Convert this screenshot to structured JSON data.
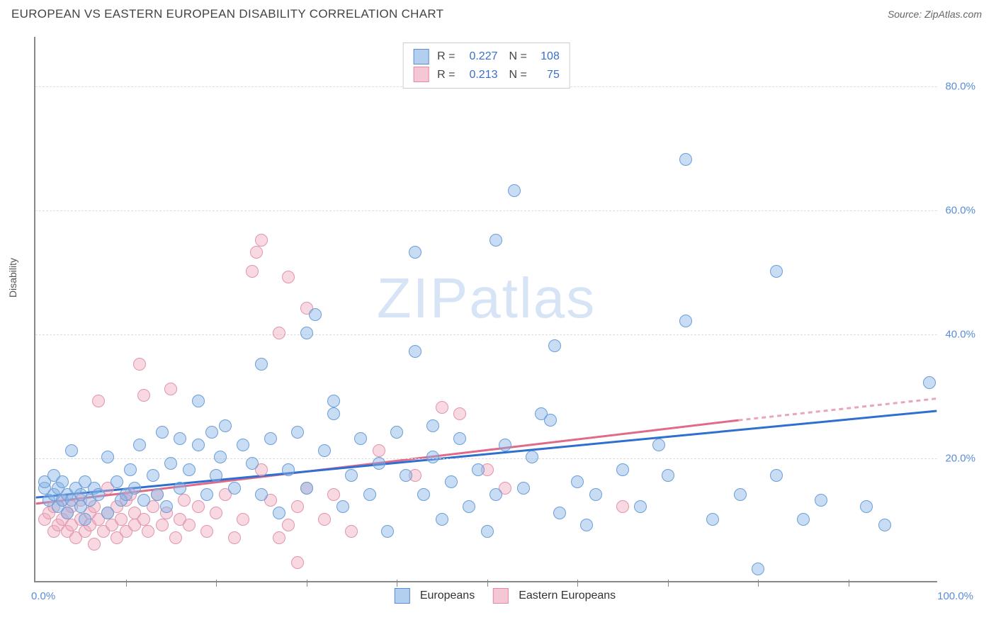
{
  "title": "EUROPEAN VS EASTERN EUROPEAN DISABILITY CORRELATION CHART",
  "source_label": "Source:",
  "source_value": "ZipAtlas.com",
  "chart": {
    "type": "scatter",
    "ylabel": "Disability",
    "xlim": [
      0,
      100
    ],
    "ylim": [
      0,
      88
    ],
    "x_min_label": "0.0%",
    "x_max_label": "100.0%",
    "x_ticks": [
      10,
      20,
      30,
      40,
      50,
      60,
      70,
      80,
      90
    ],
    "y_ticks": [
      {
        "v": 20,
        "label": "20.0%"
      },
      {
        "v": 40,
        "label": "40.0%"
      },
      {
        "v": 60,
        "label": "60.0%"
      },
      {
        "v": 80,
        "label": "80.0%"
      }
    ],
    "grid_color": "#dddddd",
    "axis_color": "#888888",
    "background_color": "#ffffff",
    "watermark": "ZIPatlas",
    "marker_radius": 9,
    "trend_line_width": 3,
    "series": {
      "europeans": {
        "label": "Europeans",
        "color_fill": "#b3cff0",
        "color_stroke": "#5b8dd6",
        "R": "0.227",
        "N": "108",
        "trend": {
          "x1": 0,
          "y1": 13.5,
          "x2": 100,
          "y2": 27.5,
          "color": "#2e6fd0"
        },
        "points": [
          [
            1,
            15
          ],
          [
            1,
            16
          ],
          [
            1.5,
            13
          ],
          [
            2,
            14
          ],
          [
            2,
            17
          ],
          [
            2.5,
            12
          ],
          [
            2.5,
            15
          ],
          [
            3,
            13
          ],
          [
            3,
            16
          ],
          [
            3.5,
            14
          ],
          [
            3.5,
            11
          ],
          [
            4,
            13
          ],
          [
            4,
            21
          ],
          [
            4.5,
            15
          ],
          [
            5,
            12
          ],
          [
            5,
            14
          ],
          [
            5.5,
            16
          ],
          [
            5.5,
            10
          ],
          [
            6,
            13
          ],
          [
            6.5,
            15
          ],
          [
            7,
            14
          ],
          [
            8,
            20
          ],
          [
            8,
            11
          ],
          [
            9,
            16
          ],
          [
            9.5,
            13
          ],
          [
            10,
            14
          ],
          [
            10.5,
            18
          ],
          [
            11,
            15
          ],
          [
            11.5,
            22
          ],
          [
            12,
            13
          ],
          [
            13,
            17
          ],
          [
            13.5,
            14
          ],
          [
            14,
            24
          ],
          [
            14.5,
            12
          ],
          [
            15,
            19
          ],
          [
            16,
            23
          ],
          [
            16,
            15
          ],
          [
            17,
            18
          ],
          [
            18,
            22
          ],
          [
            18,
            29
          ],
          [
            19,
            14
          ],
          [
            19.5,
            24
          ],
          [
            20,
            17
          ],
          [
            20.5,
            20
          ],
          [
            21,
            25
          ],
          [
            22,
            15
          ],
          [
            23,
            22
          ],
          [
            24,
            19
          ],
          [
            25,
            14
          ],
          [
            25,
            35
          ],
          [
            26,
            23
          ],
          [
            27,
            11
          ],
          [
            28,
            18
          ],
          [
            29,
            24
          ],
          [
            30,
            15
          ],
          [
            30,
            40
          ],
          [
            31,
            43
          ],
          [
            32,
            21
          ],
          [
            33,
            27
          ],
          [
            33,
            29
          ],
          [
            34,
            12
          ],
          [
            35,
            17
          ],
          [
            36,
            23
          ],
          [
            37,
            14
          ],
          [
            38,
            19
          ],
          [
            39,
            8
          ],
          [
            40,
            24
          ],
          [
            41,
            17
          ],
          [
            42,
            37
          ],
          [
            42,
            53
          ],
          [
            43,
            14
          ],
          [
            44,
            20
          ],
          [
            44,
            25
          ],
          [
            45,
            10
          ],
          [
            46,
            16
          ],
          [
            47,
            23
          ],
          [
            48,
            12
          ],
          [
            49,
            18
          ],
          [
            50,
            8
          ],
          [
            51,
            14
          ],
          [
            51,
            55
          ],
          [
            52,
            22
          ],
          [
            53,
            63
          ],
          [
            54,
            15
          ],
          [
            55,
            20
          ],
          [
            56,
            27
          ],
          [
            57,
            26
          ],
          [
            57.5,
            38
          ],
          [
            58,
            11
          ],
          [
            60,
            16
          ],
          [
            61,
            9
          ],
          [
            62,
            14
          ],
          [
            65,
            18
          ],
          [
            67,
            12
          ],
          [
            69,
            22
          ],
          [
            70,
            17
          ],
          [
            72,
            68
          ],
          [
            72,
            42
          ],
          [
            75,
            10
          ],
          [
            78,
            14
          ],
          [
            80,
            2
          ],
          [
            82,
            50
          ],
          [
            82,
            17
          ],
          [
            85,
            10
          ],
          [
            87,
            13
          ],
          [
            92,
            12
          ],
          [
            94,
            9
          ],
          [
            99,
            32
          ]
        ]
      },
      "eastern_europeans": {
        "label": "Eastern Europeans",
        "color_fill": "#f5c6d3",
        "color_stroke": "#e28ba5",
        "R": "0.213",
        "N": "75",
        "trend_solid": {
          "x1": 0,
          "y1": 12.5,
          "x2": 78,
          "y2": 26,
          "color": "#e06a8a"
        },
        "trend_dash": {
          "x1": 78,
          "y1": 26,
          "x2": 100,
          "y2": 29.5,
          "color": "#e8a7b9"
        },
        "points": [
          [
            1,
            10
          ],
          [
            1.5,
            11
          ],
          [
            2,
            8
          ],
          [
            2,
            12
          ],
          [
            2.5,
            9
          ],
          [
            3,
            10
          ],
          [
            3,
            13
          ],
          [
            3.5,
            8
          ],
          [
            3.5,
            11
          ],
          [
            4,
            9
          ],
          [
            4,
            12
          ],
          [
            4.5,
            7
          ],
          [
            5,
            10
          ],
          [
            5,
            13
          ],
          [
            5.5,
            8
          ],
          [
            6,
            11
          ],
          [
            6,
            9
          ],
          [
            6.5,
            6
          ],
          [
            6.5,
            12
          ],
          [
            7,
            10
          ],
          [
            7,
            29
          ],
          [
            7.5,
            8
          ],
          [
            8,
            11
          ],
          [
            8,
            15
          ],
          [
            8.5,
            9
          ],
          [
            9,
            12
          ],
          [
            9,
            7
          ],
          [
            9.5,
            10
          ],
          [
            10,
            13
          ],
          [
            10,
            8
          ],
          [
            10.5,
            14
          ],
          [
            11,
            9
          ],
          [
            11,
            11
          ],
          [
            11.5,
            35
          ],
          [
            12,
            10
          ],
          [
            12,
            30
          ],
          [
            12.5,
            8
          ],
          [
            13,
            12
          ],
          [
            13.5,
            14
          ],
          [
            14,
            9
          ],
          [
            14.5,
            11
          ],
          [
            15,
            31
          ],
          [
            15.5,
            7
          ],
          [
            16,
            10
          ],
          [
            16.5,
            13
          ],
          [
            17,
            9
          ],
          [
            18,
            12
          ],
          [
            19,
            8
          ],
          [
            20,
            11
          ],
          [
            21,
            14
          ],
          [
            22,
            7
          ],
          [
            23,
            10
          ],
          [
            24,
            50
          ],
          [
            24.5,
            53
          ],
          [
            25,
            55
          ],
          [
            25,
            18
          ],
          [
            26,
            13
          ],
          [
            27,
            7
          ],
          [
            27,
            40
          ],
          [
            28,
            9
          ],
          [
            28,
            49
          ],
          [
            29,
            12
          ],
          [
            29,
            3
          ],
          [
            30,
            15
          ],
          [
            30,
            44
          ],
          [
            32,
            10
          ],
          [
            33,
            14
          ],
          [
            35,
            8
          ],
          [
            38,
            21
          ],
          [
            42,
            17
          ],
          [
            45,
            28
          ],
          [
            47,
            27
          ],
          [
            50,
            18
          ],
          [
            52,
            15
          ],
          [
            65,
            12
          ]
        ]
      }
    },
    "top_legend": {
      "R_prefix": "R =",
      "N_prefix": "N ="
    },
    "bottom_legend_labels": [
      "Europeans",
      "Eastern Europeans"
    ]
  }
}
